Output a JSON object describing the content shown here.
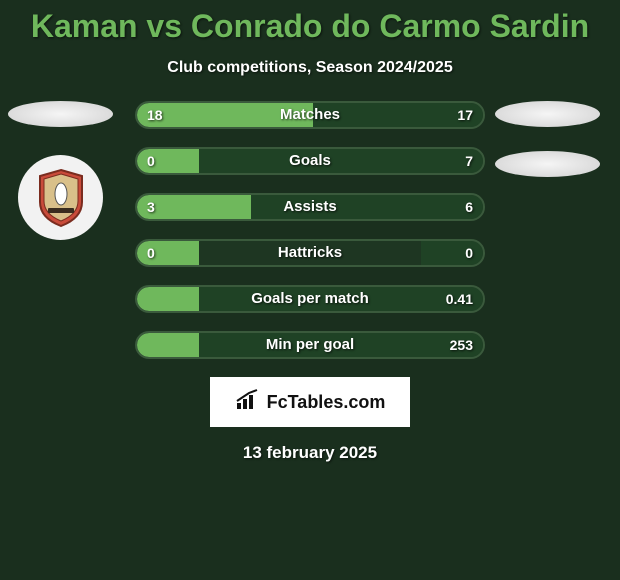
{
  "title": "Kaman vs Conrado do Carmo Sardin",
  "subtitle": "Club competitions, Season 2024/2025",
  "date": "13 february 2025",
  "logo_text": "FcTables.com",
  "colors": {
    "background": "#1a2f1e",
    "title": "#6fb85c",
    "text": "#ffffff",
    "bar_border": "#3a5a3c",
    "bar_bg": "#1e3622",
    "left_bar": "#6fb85c",
    "right_bar": "#1f4225"
  },
  "stats": [
    {
      "label": "Matches",
      "left_val": "18",
      "right_val": "17",
      "left_pct": 51,
      "right_pct": 49
    },
    {
      "label": "Goals",
      "left_val": "0",
      "right_val": "7",
      "left_pct": 18,
      "right_pct": 82
    },
    {
      "label": "Assists",
      "left_val": "3",
      "right_val": "6",
      "left_pct": 33,
      "right_pct": 67
    },
    {
      "label": "Hattricks",
      "left_val": "0",
      "right_val": "0",
      "left_pct": 18,
      "right_pct": 18
    },
    {
      "label": "Goals per match",
      "left_val": "",
      "right_val": "0.41",
      "left_pct": 18,
      "right_pct": 82
    },
    {
      "label": "Min per goal",
      "left_val": "",
      "right_val": "253",
      "left_pct": 18,
      "right_pct": 82
    }
  ],
  "typography": {
    "title_size": 32,
    "subtitle_size": 16,
    "stat_label_size": 15,
    "stat_val_size": 14,
    "date_size": 17
  }
}
